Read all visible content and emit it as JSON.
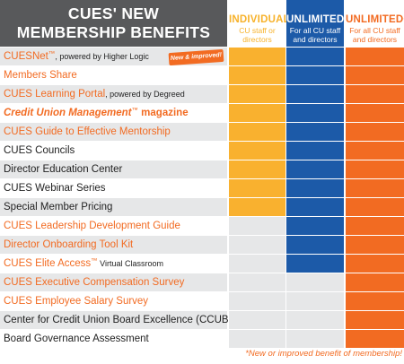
{
  "header": {
    "title_line1": "CUES' NEW",
    "title_line2": "MEMBERSHIP BENEFITS",
    "tiers": [
      {
        "name": "INDIVIDUAL",
        "desc1": "CU staff or",
        "desc2": "directors"
      },
      {
        "name": "UNLIMITED",
        "desc1": "For all CU staff",
        "desc2": "and directors"
      },
      {
        "name": "UNLIMITED+",
        "desc1": "For all CU staff",
        "desc2": "and directors"
      }
    ]
  },
  "badge": "New & improved!",
  "benefits": [
    {
      "name": "CUESNet",
      "tm": "™",
      "suffix": ", powered by Higher Logic",
      "highlight": true,
      "individual": true,
      "unlimited": true,
      "unlimited_plus": true
    },
    {
      "name": "Members Share",
      "tm": "",
      "suffix": "",
      "highlight": true,
      "individual": true,
      "unlimited": true,
      "unlimited_plus": true
    },
    {
      "name": "CUES Learning Portal",
      "tm": "",
      "suffix": ", powered by Degreed",
      "highlight": true,
      "individual": true,
      "unlimited": true,
      "unlimited_plus": true
    },
    {
      "name": "Credit Union Management",
      "tm": "™",
      "suffix": " magazine",
      "highlight": true,
      "italic": true,
      "individual": true,
      "unlimited": true,
      "unlimited_plus": true
    },
    {
      "name": "CUES Guide to Effective Mentorship",
      "tm": "",
      "suffix": "",
      "highlight": true,
      "individual": true,
      "unlimited": true,
      "unlimited_plus": true
    },
    {
      "name": "CUES Councils",
      "tm": "",
      "suffix": "",
      "highlight": false,
      "individual": true,
      "unlimited": true,
      "unlimited_plus": true
    },
    {
      "name": "Director Education Center",
      "tm": "",
      "suffix": "",
      "highlight": false,
      "individual": true,
      "unlimited": true,
      "unlimited_plus": true
    },
    {
      "name": "CUES Webinar Series",
      "tm": "",
      "suffix": "",
      "highlight": false,
      "individual": true,
      "unlimited": true,
      "unlimited_plus": true
    },
    {
      "name": "Special Member Pricing",
      "tm": "",
      "suffix": "",
      "highlight": false,
      "individual": true,
      "unlimited": true,
      "unlimited_plus": true
    },
    {
      "name": "CUES Leadership Development Guide",
      "tm": "",
      "suffix": "",
      "highlight": true,
      "individual": false,
      "unlimited": true,
      "unlimited_plus": true
    },
    {
      "name": "Director Onboarding Tool Kit",
      "tm": "",
      "suffix": "",
      "highlight": true,
      "individual": false,
      "unlimited": true,
      "unlimited_plus": true
    },
    {
      "name": "CUES Elite Access",
      "tm": "™",
      "suffix": " Virtual Classroom",
      "highlight": true,
      "individual": false,
      "unlimited": true,
      "unlimited_plus": true
    },
    {
      "name": "CUES Executive Compensation Survey",
      "tm": "",
      "suffix": "",
      "highlight": true,
      "individual": false,
      "unlimited": false,
      "unlimited_plus": true
    },
    {
      "name": "CUES Employee Salary Survey",
      "tm": "",
      "suffix": "",
      "highlight": true,
      "individual": false,
      "unlimited": false,
      "unlimited_plus": true
    },
    {
      "name": "Center for Credit Union Board Excellence (CCUBE)",
      "tm": "",
      "suffix": "",
      "highlight": false,
      "individual": false,
      "unlimited": false,
      "unlimited_plus": true
    },
    {
      "name": "Board Governance Assessment",
      "tm": "",
      "suffix": "",
      "highlight": false,
      "individual": false,
      "unlimited": false,
      "unlimited_plus": true
    }
  ],
  "footnote": "*New or improved benefit of membership!",
  "colors": {
    "header_gray": "#58595b",
    "individual": "#f9b12f",
    "unlimited": "#1c5aa8",
    "unlimited_plus": "#f26b22",
    "row_alt": "#e6e7e8"
  }
}
